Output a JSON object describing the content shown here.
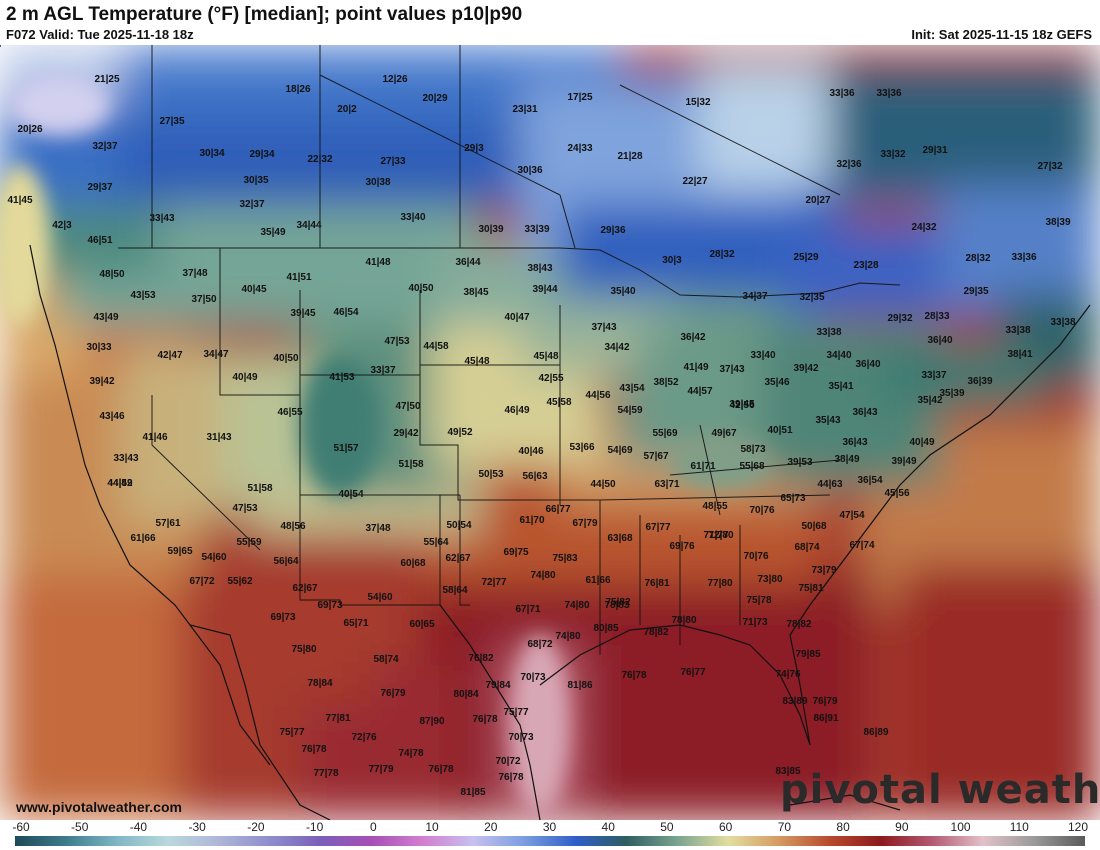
{
  "header": {
    "title": "2 m AGL Temperature (°F) [median]; point values p10|p90",
    "valid": "F072 Valid: Tue 2025-11-18 18z",
    "init": "Init: Sat 2025-11-15 18z GEFS"
  },
  "branding": {
    "watermark": "pivotal weather",
    "website": "www.pivotalweather.com"
  },
  "scale": {
    "ticks": [
      "-60",
      "-50",
      "-40",
      "-30",
      "-20",
      "-10",
      "0",
      "10",
      "20",
      "30",
      "40",
      "50",
      "60",
      "70",
      "80",
      "90",
      "100",
      "110",
      "120"
    ],
    "colors": [
      "#1e4a5a",
      "#3d7b8c",
      "#7fb7c4",
      "#b9d8dc",
      "#aeb6d8",
      "#8d8fcd",
      "#7b5fb8",
      "#a74fb6",
      "#d27fd0",
      "#c7c0f0",
      "#7a9de0",
      "#2f5fc8",
      "#2e5e62",
      "#7aa48f",
      "#e2dea0",
      "#d49a62",
      "#b74a2d",
      "#8c1a1e",
      "#b45a73",
      "#e3c1c9",
      "#9a9a9a",
      "#5a5a5a"
    ]
  },
  "points": [
    "21|25",
    "18|26",
    "12|26",
    "20|29",
    "20|2",
    "23|31",
    "17|25",
    "15|32",
    "33|36",
    "33|36",
    "20|26",
    "27|35",
    "29|3",
    "24|33",
    "21|28",
    "32|36",
    "33|32",
    "29|31",
    "27|32",
    "32|37",
    "30|34",
    "29|34",
    "22|32",
    "27|33",
    "30|36",
    "22|27",
    "20|27",
    "29|37",
    "30|35",
    "30|38",
    "33|43",
    "32|37",
    "33|40",
    "24|32",
    "38|39",
    "41|45",
    "42|3",
    "35|49",
    "34|44",
    "30|39",
    "33|39",
    "29|36",
    "30|3",
    "28|32",
    "25|29",
    "23|28",
    "28|32",
    "33|36",
    "46|51",
    "37|48",
    "41|48",
    "36|44",
    "38|43",
    "29|35",
    "48|50",
    "40|45",
    "41|51",
    "40|50",
    "38|45",
    "39|44",
    "35|40",
    "34|37",
    "32|35",
    "43|53",
    "37|50",
    "39|45",
    "46|54",
    "40|47",
    "37|43",
    "29|32",
    "28|33",
    "33|38",
    "33|38",
    "43|49",
    "47|53",
    "44|58",
    "34|42",
    "36|42",
    "33|38",
    "36|40",
    "30|33",
    "42|47",
    "34|47",
    "40|50",
    "45|48",
    "41|49",
    "37|43",
    "33|40",
    "34|40",
    "39|42",
    "36|40",
    "38|41",
    "39|42",
    "40|49",
    "41|53",
    "33|37",
    "45|48",
    "42|55",
    "43|54",
    "38|52",
    "35|46",
    "35|41",
    "33|37",
    "36|39",
    "43|46",
    "46|55",
    "47|50",
    "46|49",
    "45|58",
    "44|56",
    "44|57",
    "39|45",
    "36|43",
    "35|42",
    "35|39",
    "41|46",
    "31|43",
    "29|42",
    "49|52",
    "54|59",
    "42|56",
    "35|43",
    "33|43",
    "51|57",
    "40|46",
    "53|66",
    "54|69",
    "55|69",
    "49|67",
    "40|51",
    "36|43",
    "40|49",
    "44|49",
    "51|58",
    "50|53",
    "56|63",
    "57|67",
    "58|73",
    "39|53",
    "38|49",
    "39|49",
    "44|52",
    "51|58",
    "40|54",
    "44|50",
    "63|71",
    "61|71",
    "55|68",
    "44|63",
    "36|54",
    "45|56",
    "47|53",
    "48|55",
    "65|73",
    "47|54",
    "57|61",
    "48|56",
    "37|48",
    "50|54",
    "61|70",
    "66|77",
    "67|79",
    "67|77",
    "70|76",
    "50|68",
    "61|66",
    "55|59",
    "55|64",
    "63|68",
    "69|76",
    "71|77",
    "67|74",
    "59|65",
    "54|60",
    "56|64",
    "60|68",
    "62|67",
    "69|75",
    "75|83",
    "72|80",
    "70|76",
    "68|74",
    "67|72",
    "55|62",
    "62|67",
    "58|64",
    "72|77",
    "74|80",
    "75|82",
    "77|80",
    "73|80",
    "73|79",
    "69|73",
    "54|60",
    "61|66",
    "76|81",
    "75|78",
    "75|81",
    "69|73",
    "65|71",
    "60|65",
    "67|71",
    "74|80",
    "78|83",
    "78|80",
    "71|73",
    "78|82",
    "74|80",
    "80|85",
    "78|82",
    "75|80",
    "58|74",
    "68|72",
    "76|82",
    "79|85",
    "78|84",
    "76|79",
    "70|73",
    "81|86",
    "76|78",
    "76|77",
    "74|76",
    "77|81",
    "80|84",
    "79|84",
    "83|89",
    "76|79",
    "75|77",
    "72|76",
    "87|90",
    "76|78",
    "75|77",
    "86|91",
    "76|78",
    "74|78",
    "70|73",
    "86|89",
    "77|78",
    "77|79",
    "76|78",
    "70|72",
    "76|78",
    "83|85",
    "81|85",
    "73|75"
  ]
}
